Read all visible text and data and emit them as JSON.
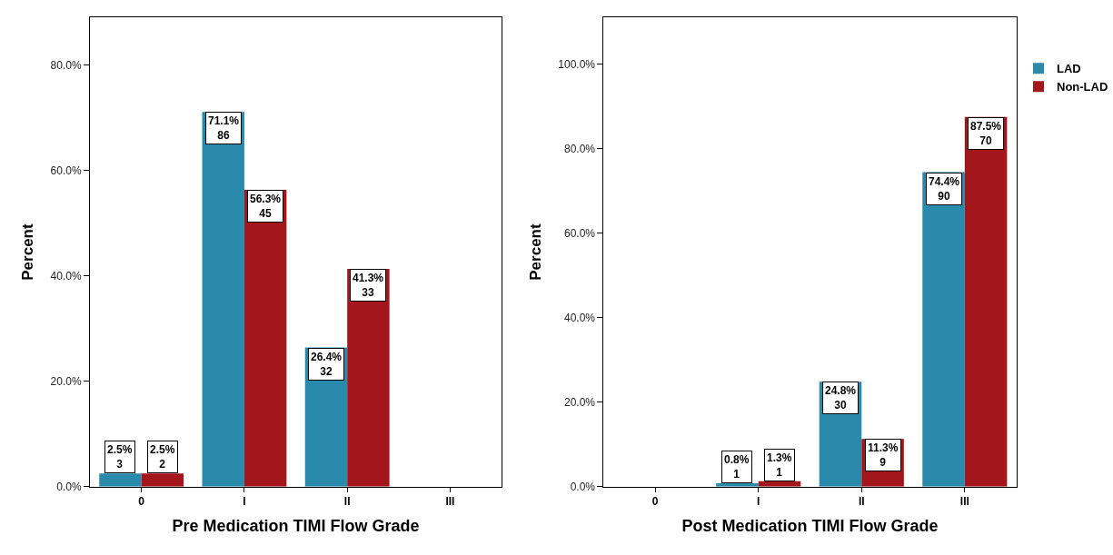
{
  "chart_data": [
    {
      "type": "bar",
      "xlabel": "Pre Medication TIMI Flow Grade",
      "ylabel": "Percent",
      "categories": [
        "0",
        "I",
        "II",
        "III"
      ],
      "ylim": [
        0,
        89
      ],
      "yticks": [
        {
          "value": 0,
          "label": "0.0%"
        },
        {
          "value": 20,
          "label": "20.0%"
        },
        {
          "value": 40,
          "label": "40.0%"
        },
        {
          "value": 60,
          "label": "60.0%"
        },
        {
          "value": 80,
          "label": "80.0%"
        }
      ],
      "legend": false,
      "series": [
        {
          "color": "#2a8aab",
          "values": [
            2.5,
            71.1,
            26.4,
            null
          ],
          "value_labels": [
            "2.5%\n3",
            "71.1%\n86",
            "26.4%\n32",
            null
          ]
        },
        {
          "color": "#a3161b",
          "values": [
            2.5,
            56.3,
            41.3,
            null
          ],
          "value_labels": [
            "2.5%\n2",
            "56.3%\n45",
            "41.3%\n33",
            null
          ]
        }
      ]
    },
    {
      "type": "bar",
      "xlabel": "Post Medication TIMI Flow Grade",
      "ylabel": "Percent",
      "categories": [
        "0",
        "I",
        "II",
        "III"
      ],
      "ylim": [
        0,
        111
      ],
      "yticks": [
        {
          "value": 0,
          "label": "0.0%"
        },
        {
          "value": 20,
          "label": "20.0%"
        },
        {
          "value": 40,
          "label": "40.0%"
        },
        {
          "value": 60,
          "label": "60.0%"
        },
        {
          "value": 80,
          "label": "80.0%"
        },
        {
          "value": 100,
          "label": "100.0%"
        }
      ],
      "legend": "top right",
      "series": [
        {
          "name": "LAD",
          "color": "#2a8aab",
          "values": [
            null,
            0.8,
            24.8,
            74.4
          ],
          "value_labels": [
            null,
            "0.8%\n1",
            "24.8%\n30",
            "74.4%\n90"
          ]
        },
        {
          "name": "Non-LAD",
          "color": "#a3161b",
          "values": [
            null,
            1.3,
            11.3,
            87.5
          ],
          "value_labels": [
            null,
            "1.3%\n1",
            "11.3%\n9",
            "87.5%\n70"
          ]
        }
      ]
    }
  ]
}
